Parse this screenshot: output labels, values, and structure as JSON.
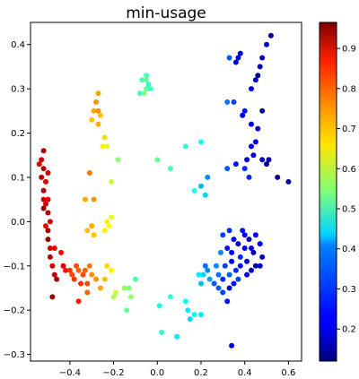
{
  "chart_data": {
    "type": "scatter",
    "title": "min-usage",
    "xlabel": "",
    "ylabel": "",
    "xlim": [
      -0.58,
      0.66
    ],
    "ylim": [
      -0.315,
      0.45
    ],
    "xticks": [
      -0.4,
      -0.2,
      0.0,
      0.2,
      0.4,
      0.6
    ],
    "xtick_labels": [
      "−0.4",
      "−0.2",
      "0.0",
      "0.2",
      "0.4",
      "0.6"
    ],
    "yticks": [
      -0.3,
      -0.2,
      -0.1,
      0.0,
      0.1,
      0.2,
      0.3,
      0.4
    ],
    "ytick_labels": [
      "−0.3",
      "−0.2",
      "−0.1",
      "0.0",
      "0.1",
      "0.2",
      "0.3",
      "0.4"
    ],
    "grid": false,
    "colorbar": {
      "colormap": "jet",
      "range": [
        0.12,
        0.965
      ],
      "ticks": [
        0.2,
        0.3,
        0.4,
        0.5,
        0.6,
        0.7,
        0.8,
        0.9
      ],
      "tick_labels": [
        "0.2",
        "0.3",
        "0.4",
        "0.5",
        "0.6",
        "0.7",
        "0.8",
        "0.9"
      ]
    },
    "points": [
      [
        0.52,
        0.42,
        0.14
      ],
      [
        0.5,
        0.4,
        0.18
      ],
      [
        0.38,
        0.38,
        0.2
      ],
      [
        0.37,
        0.37,
        0.22
      ],
      [
        0.36,
        0.36,
        0.2
      ],
      [
        0.48,
        0.37,
        0.18
      ],
      [
        0.47,
        0.35,
        0.16
      ],
      [
        0.46,
        0.33,
        0.15
      ],
      [
        0.45,
        0.32,
        0.18
      ],
      [
        0.43,
        0.3,
        0.2
      ],
      [
        0.33,
        0.37,
        0.3
      ],
      [
        0.32,
        0.27,
        0.32
      ],
      [
        0.35,
        0.27,
        0.28
      ],
      [
        0.39,
        0.24,
        0.22
      ],
      [
        0.4,
        0.25,
        0.24
      ],
      [
        0.48,
        0.25,
        0.13
      ],
      [
        0.43,
        0.22,
        0.2
      ],
      [
        0.46,
        0.21,
        0.18
      ],
      [
        0.45,
        0.18,
        0.2
      ],
      [
        0.43,
        0.17,
        0.22
      ],
      [
        0.44,
        0.15,
        0.2
      ],
      [
        0.41,
        0.14,
        0.19
      ],
      [
        0.48,
        0.14,
        0.16
      ],
      [
        0.5,
        0.13,
        0.14
      ],
      [
        0.51,
        0.14,
        0.16
      ],
      [
        0.55,
        0.1,
        0.14
      ],
      [
        0.6,
        0.09,
        0.14
      ],
      [
        0.42,
        0.1,
        0.26
      ],
      [
        0.4,
        0.12,
        0.26
      ],
      [
        0.36,
        0.13,
        0.24
      ],
      [
        0.32,
        0.12,
        0.3
      ],
      [
        0.33,
        -0.02,
        0.26
      ],
      [
        0.3,
        -0.03,
        0.28
      ],
      [
        0.35,
        -0.04,
        0.22
      ],
      [
        0.39,
        -0.02,
        0.24
      ],
      [
        0.37,
        -0.05,
        0.2
      ],
      [
        0.32,
        -0.06,
        0.24
      ],
      [
        0.29,
        -0.07,
        0.34
      ],
      [
        0.34,
        -0.07,
        0.21
      ],
      [
        0.38,
        -0.08,
        0.26
      ],
      [
        0.4,
        -0.06,
        0.2
      ],
      [
        0.41,
        -0.09,
        0.18
      ],
      [
        0.44,
        -0.07,
        0.16
      ],
      [
        0.47,
        -0.05,
        0.22
      ],
      [
        0.48,
        -0.08,
        0.18
      ],
      [
        0.45,
        -0.1,
        0.14
      ],
      [
        0.43,
        -0.11,
        0.16
      ],
      [
        0.41,
        -0.12,
        0.2
      ],
      [
        0.38,
        -0.1,
        0.24
      ],
      [
        0.36,
        -0.11,
        0.26
      ],
      [
        0.34,
        -0.09,
        0.22
      ],
      [
        0.33,
        -0.12,
        0.3
      ],
      [
        0.31,
        -0.1,
        0.28
      ],
      [
        0.3,
        -0.13,
        0.26
      ],
      [
        0.28,
        -0.12,
        0.32
      ],
      [
        0.27,
        -0.1,
        0.34
      ],
      [
        0.26,
        -0.14,
        0.3
      ],
      [
        0.24,
        -0.13,
        0.36
      ],
      [
        0.23,
        -0.11,
        0.34
      ],
      [
        0.22,
        -0.1,
        0.32
      ],
      [
        0.21,
        -0.12,
        0.4
      ],
      [
        0.2,
        -0.14,
        0.38
      ],
      [
        0.19,
        -0.12,
        0.42
      ],
      [
        0.28,
        -0.15,
        0.3
      ],
      [
        0.3,
        -0.16,
        0.28
      ],
      [
        0.33,
        -0.15,
        0.22
      ],
      [
        0.35,
        -0.14,
        0.24
      ],
      [
        0.37,
        -0.13,
        0.28
      ],
      [
        0.32,
        -0.18,
        0.24
      ],
      [
        0.4,
        -0.03,
        0.22
      ],
      [
        0.42,
        -0.04,
        0.18
      ],
      [
        0.45,
        -0.03,
        0.22
      ],
      [
        0.43,
        -0.06,
        0.2
      ],
      [
        0.47,
        -0.1,
        0.18
      ],
      [
        0.34,
        -0.28,
        0.2
      ],
      [
        0.23,
        0.1,
        0.34
      ],
      [
        0.22,
        0.06,
        0.4
      ],
      [
        0.2,
        0.08,
        0.38
      ],
      [
        0.17,
        0.07,
        0.46
      ],
      [
        0.13,
        0.17,
        0.48
      ],
      [
        0.06,
        0.12,
        0.5
      ],
      [
        0.0,
        0.14,
        0.52
      ],
      [
        -0.07,
        0.32,
        0.5
      ],
      [
        -0.05,
        0.3,
        0.52
      ],
      [
        -0.06,
        0.29,
        0.54
      ],
      [
        -0.05,
        0.33,
        0.5
      ],
      [
        -0.04,
        0.31,
        0.48
      ],
      [
        -0.03,
        0.3,
        0.5
      ],
      [
        -0.05,
        0.32,
        0.52
      ],
      [
        -0.08,
        0.29,
        0.5
      ],
      [
        0.2,
        0.18,
        0.45
      ],
      [
        -0.2,
        -0.17,
        0.58
      ],
      [
        -0.1,
        -0.13,
        0.5
      ],
      [
        -0.13,
        -0.15,
        0.54
      ],
      [
        -0.12,
        -0.17,
        0.56
      ],
      [
        -0.14,
        -0.2,
        0.52
      ],
      [
        0.01,
        -0.19,
        0.46
      ],
      [
        0.02,
        -0.25,
        0.48
      ],
      [
        0.06,
        -0.17,
        0.48
      ],
      [
        0.09,
        -0.26,
        0.42
      ],
      [
        0.13,
        -0.18,
        0.44
      ],
      [
        0.14,
        -0.2,
        0.42
      ],
      [
        0.17,
        -0.21,
        0.44
      ],
      [
        0.15,
        -0.22,
        0.4
      ],
      [
        0.2,
        -0.21,
        0.42
      ],
      [
        -0.15,
        -0.15,
        0.56
      ],
      [
        -0.19,
        -0.16,
        0.6
      ],
      [
        -0.18,
        0.14,
        0.56
      ],
      [
        -0.21,
        0.09,
        0.6
      ],
      [
        -0.23,
        0.17,
        0.62
      ],
      [
        -0.27,
        0.29,
        0.72
      ],
      [
        -0.28,
        0.27,
        0.74
      ],
      [
        -0.29,
        0.25,
        0.72
      ],
      [
        -0.27,
        0.25,
        0.74
      ],
      [
        -0.26,
        0.24,
        0.7
      ],
      [
        -0.3,
        0.23,
        0.7
      ],
      [
        -0.27,
        0.22,
        0.72
      ],
      [
        -0.24,
        0.19,
        0.68
      ],
      [
        -0.25,
        0.17,
        0.66
      ],
      [
        -0.21,
        0.01,
        0.62
      ],
      [
        -0.22,
        -0.01,
        0.64
      ],
      [
        -0.24,
        -0.02,
        0.66
      ],
      [
        -0.23,
        0.0,
        0.66
      ],
      [
        -0.31,
        0.11,
        0.76
      ],
      [
        -0.33,
        0.05,
        0.72
      ],
      [
        -0.29,
        0.05,
        0.74
      ],
      [
        -0.3,
        -0.01,
        0.72
      ],
      [
        -0.32,
        -0.02,
        0.7
      ],
      [
        -0.29,
        -0.03,
        0.7
      ],
      [
        -0.23,
        -0.1,
        0.68
      ],
      [
        -0.21,
        -0.11,
        0.66
      ],
      [
        -0.24,
        -0.13,
        0.7
      ],
      [
        -0.26,
        -0.15,
        0.72
      ],
      [
        -0.28,
        -0.13,
        0.74
      ],
      [
        -0.3,
        -0.12,
        0.74
      ],
      [
        -0.32,
        -0.16,
        0.78
      ],
      [
        -0.53,
        0.14,
        0.9
      ],
      [
        -0.54,
        0.13,
        0.88
      ],
      [
        -0.52,
        0.12,
        0.92
      ],
      [
        -0.51,
        0.09,
        0.9
      ],
      [
        -0.52,
        0.07,
        0.92
      ],
      [
        -0.5,
        0.05,
        0.88
      ],
      [
        -0.51,
        0.04,
        0.9
      ],
      [
        -0.52,
        0.03,
        0.94
      ],
      [
        -0.5,
        0.02,
        0.92
      ],
      [
        -0.49,
        0.0,
        0.9
      ],
      [
        -0.51,
        -0.01,
        0.88
      ],
      [
        -0.5,
        -0.02,
        0.92
      ],
      [
        -0.52,
        0.05,
        0.9
      ],
      [
        -0.53,
        0.1,
        0.92
      ],
      [
        -0.5,
        -0.04,
        0.94
      ],
      [
        -0.49,
        -0.06,
        0.9
      ],
      [
        -0.49,
        -0.08,
        0.92
      ],
      [
        -0.48,
        -0.1,
        0.9
      ],
      [
        -0.47,
        -0.12,
        0.92
      ],
      [
        -0.46,
        -0.13,
        0.94
      ],
      [
        -0.47,
        -0.06,
        0.88
      ],
      [
        -0.44,
        -0.07,
        0.86
      ],
      [
        -0.43,
        -0.1,
        0.88
      ],
      [
        -0.42,
        -0.11,
        0.84
      ],
      [
        -0.4,
        -0.11,
        0.82
      ],
      [
        -0.39,
        -0.12,
        0.8
      ],
      [
        -0.38,
        -0.13,
        0.82
      ],
      [
        -0.37,
        -0.1,
        0.8
      ],
      [
        -0.36,
        -0.11,
        0.78
      ],
      [
        -0.35,
        -0.14,
        0.82
      ],
      [
        -0.33,
        -0.11,
        0.78
      ],
      [
        -0.34,
        -0.12,
        0.8
      ],
      [
        -0.48,
        -0.17,
        0.96
      ],
      [
        -0.52,
        0.16,
        0.92
      ],
      [
        -0.5,
        0.11,
        0.9
      ],
      [
        -0.36,
        -0.18,
        0.84
      ],
      [
        -0.31,
        -0.1,
        0.76
      ],
      [
        -0.32,
        -0.14,
        0.8
      ]
    ]
  }
}
